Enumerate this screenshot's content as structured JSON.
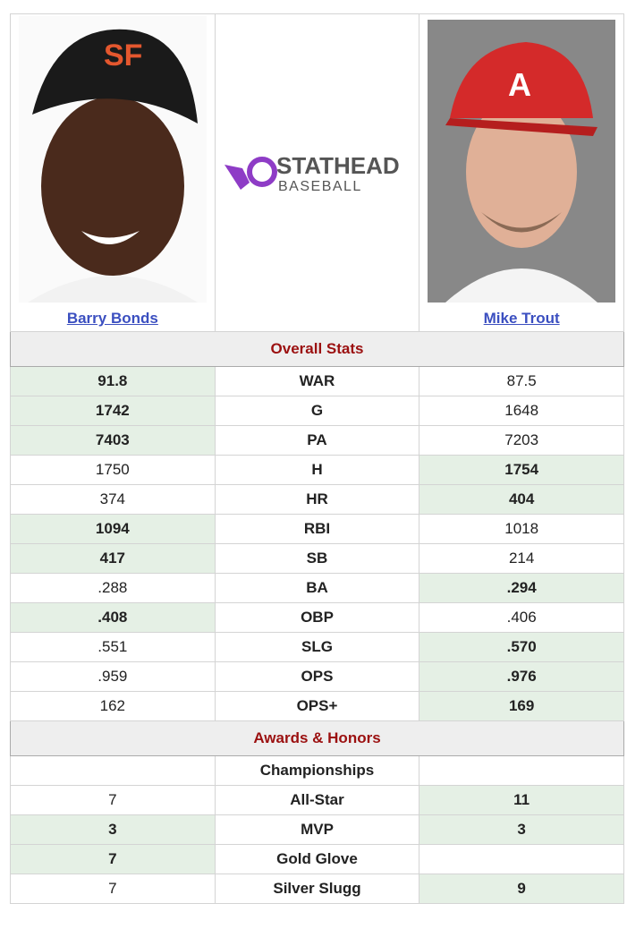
{
  "players": {
    "left": "Barry Bonds",
    "right": "Mike Trout"
  },
  "logo": {
    "top": "STATHEAD",
    "bottom": "BASEBALL"
  },
  "sections": [
    {
      "title": "Overall Stats",
      "rows": [
        {
          "cells": [
            "91.8",
            "WAR",
            "87.5"
          ],
          "leader": "left"
        },
        {
          "cells": [
            "1742",
            "G",
            "1648"
          ],
          "leader": "left"
        },
        {
          "cells": [
            "7403",
            "PA",
            "7203"
          ],
          "leader": "left"
        },
        {
          "cells": [
            "1750",
            "H",
            "1754"
          ],
          "leader": "right"
        },
        {
          "cells": [
            "374",
            "HR",
            "404"
          ],
          "leader": "right"
        },
        {
          "cells": [
            "1094",
            "RBI",
            "1018"
          ],
          "leader": "left"
        },
        {
          "cells": [
            "417",
            "SB",
            "214"
          ],
          "leader": "left"
        },
        {
          "cells": [
            ".288",
            "BA",
            ".294"
          ],
          "leader": "right"
        },
        {
          "cells": [
            ".408",
            "OBP",
            ".406"
          ],
          "leader": "left"
        },
        {
          "cells": [
            ".551",
            "SLG",
            ".570"
          ],
          "leader": "right"
        },
        {
          "cells": [
            ".959",
            "OPS",
            ".976"
          ],
          "leader": "right"
        },
        {
          "cells": [
            "162",
            "OPS+",
            "169"
          ],
          "leader": "right"
        }
      ]
    },
    {
      "title": "Awards & Honors",
      "rows": [
        {
          "cells": [
            null,
            "Championships",
            null
          ],
          "leader": null
        },
        {
          "cells": [
            "7",
            "All-Star",
            "11"
          ],
          "leader": "right"
        },
        {
          "cells": [
            "3",
            "MVP",
            "3"
          ],
          "leader": "both"
        },
        {
          "cells": [
            "7",
            "Gold Glove",
            null
          ],
          "leader": "left"
        },
        {
          "cells": [
            "7",
            "Silver Slugg",
            "9"
          ],
          "leader": "right"
        }
      ]
    }
  ]
}
